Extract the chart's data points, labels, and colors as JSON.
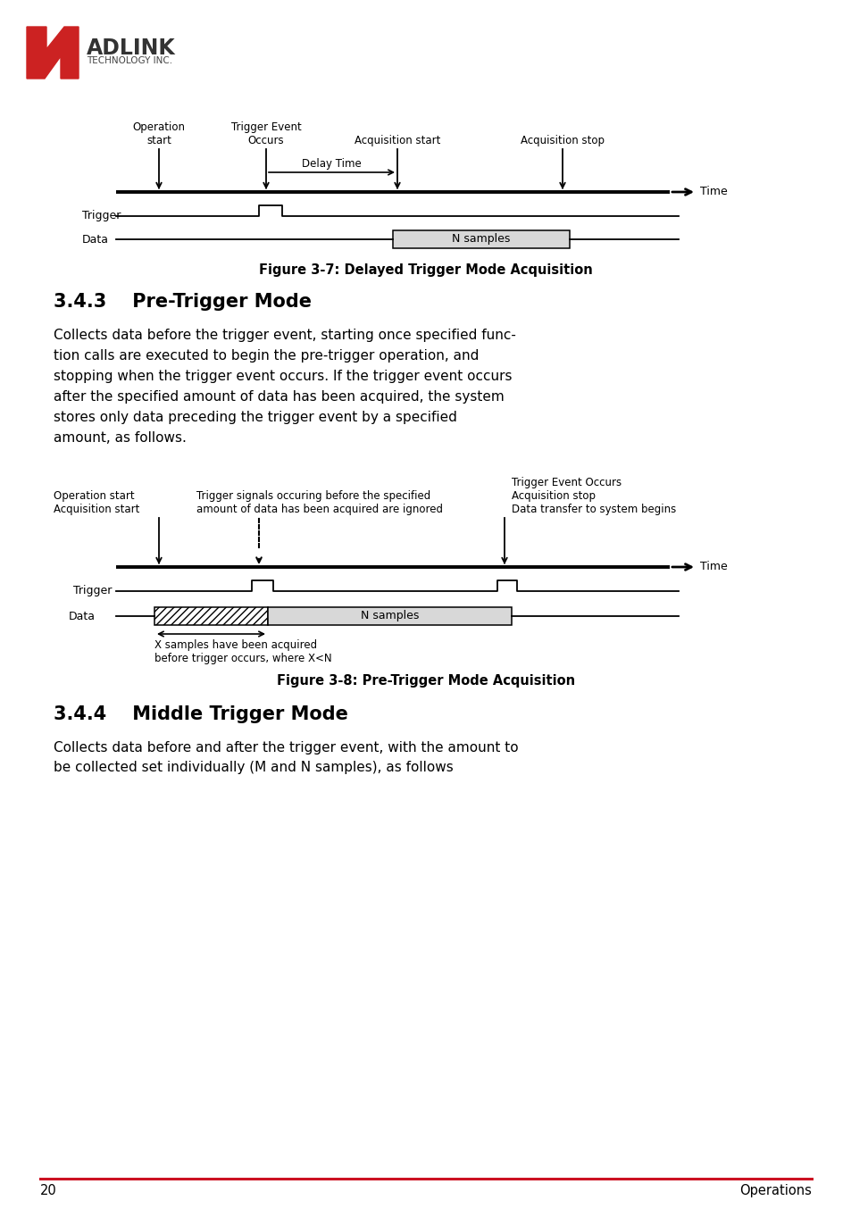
{
  "bg_color": "#ffffff",
  "page_num": "20",
  "page_right_text": "Operations",
  "fig37_title": "Figure 3-7: Delayed Trigger Mode Acquisition",
  "fig38_title": "Figure 3-8: Pre-Trigger Mode Acquisition",
  "section343_title": "3.4.3    Pre-Trigger Mode",
  "section344_title": "3.4.4    Middle Trigger Mode",
  "section343_body1": "Collects data before the trigger event, starting once specified func-",
  "section343_body2": "tion calls are executed to begin the pre-trigger operation, and",
  "section343_body3": "stopping when the trigger event occurs. If the trigger event occurs",
  "section343_body4": "after the specified amount of data has been acquired, the system",
  "section343_body5": "stores only data preceding the trigger event by a specified",
  "section343_body6": "amount, as follows.",
  "section344_body1": "Collects data before and after the trigger event, with the amount to",
  "section344_body2": "be collected set individually (M and N samples), as follows",
  "footer_line_color": "#cc1122",
  "fig37_op_start": "Operation\nstart",
  "fig37_trig_event": "Trigger Event\nOccurs",
  "fig37_delay_time": "Delay Time",
  "fig37_acq_start": "Acquisition start",
  "fig37_acq_stop": "Acquisition stop",
  "fig37_time": "Time",
  "fig37_trigger": "Trigger",
  "fig37_data": "Data",
  "fig37_n_samples": "N samples",
  "fig38_op_start": "Operation start\nAcquisition start",
  "fig38_trig_ignored_line1": "Trigger signals occuring before the specified",
  "fig38_trig_ignored_line2": "amount of data has been acquired are ignored",
  "fig38_trig_event_line1": "Trigger Event Occurs",
  "fig38_trig_event_line2": "Acquisition stop",
  "fig38_trig_event_line3": "Data transfer to system begins",
  "fig38_time": "Time",
  "fig38_trigger": "Trigger",
  "fig38_data": "Data",
  "fig38_n_samples": "N samples",
  "fig38_x_samples_line1": "X samples have been acquired",
  "fig38_x_samples_line2": "before trigger occurs, where X<N"
}
